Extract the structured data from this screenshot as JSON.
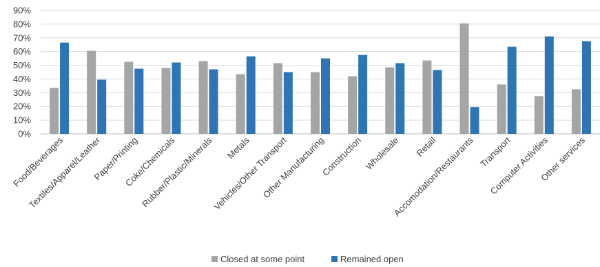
{
  "chart_data": {
    "type": "bar",
    "title": "",
    "xlabel": "",
    "ylabel": "",
    "ylim": [
      0,
      90
    ],
    "yticks": [
      "0%",
      "10%",
      "20%",
      "30%",
      "40%",
      "50%",
      "60%",
      "70%",
      "80%",
      "90%"
    ],
    "grid": true,
    "legend_position": "bottom",
    "categories": [
      "Food/Beverages",
      "Textiles/Apparel/Leather",
      "Paper/Printing",
      "Coke/Chemicals",
      "Rubber/Plastic/Minerals",
      "Metals",
      "Vehicles/Other Transport",
      "Other Manufacturing",
      "Construction",
      "Wholesale",
      "Retail",
      "Accomodation/Restaurants",
      "Transport",
      "Computer Activities",
      "Other services"
    ],
    "series": [
      {
        "name": "Closed at some point",
        "color": "#a5a5a5",
        "values": [
          33.5,
          60.5,
          52.5,
          48,
          53,
          43.5,
          51.5,
          45,
          42,
          48.5,
          53.5,
          80.5,
          36,
          27.5,
          32.5
        ]
      },
      {
        "name": "Remained open",
        "color": "#2e75b6",
        "values": [
          66.5,
          39.5,
          47.5,
          52,
          47,
          56.5,
          45,
          55,
          57.5,
          51.5,
          46.5,
          19.5,
          63.5,
          71,
          67.5
        ]
      }
    ]
  }
}
